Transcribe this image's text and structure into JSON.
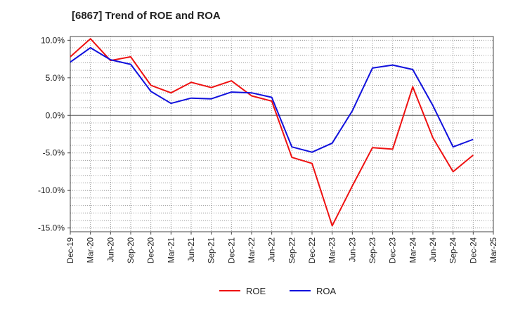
{
  "chart_data": {
    "type": "line",
    "title": "[6867]  Trend of ROE and ROA",
    "xlabel": "",
    "ylabel": "",
    "categories": [
      "Dec-19",
      "Mar-20",
      "Jun-20",
      "Sep-20",
      "Dec-20",
      "Mar-21",
      "Jun-21",
      "Sep-21",
      "Dec-21",
      "Mar-22",
      "Jun-22",
      "Sep-22",
      "Dec-22",
      "Mar-23",
      "Jun-23",
      "Sep-23",
      "Dec-23",
      "Mar-24",
      "Jun-24",
      "Sep-24",
      "Dec-24",
      "Mar-25"
    ],
    "ylim": [
      -15.5,
      10.5
    ],
    "yticks": [
      10,
      5,
      0,
      -5,
      -10,
      -15
    ],
    "ytick_labels": [
      "10.0%",
      "5.0%",
      "0.0%",
      "-5.0%",
      "-10.0%",
      "-15.0%"
    ],
    "grid": true,
    "legend_position": "bottom",
    "series": [
      {
        "name": "ROE",
        "color": "#ee1111",
        "values": [
          7.8,
          10.2,
          7.3,
          7.8,
          4.0,
          3.0,
          4.4,
          3.7,
          4.6,
          2.6,
          1.9,
          -5.6,
          -6.4,
          -14.7,
          -9.4,
          -4.3,
          -4.5,
          3.8,
          -3.0,
          -7.5,
          -5.3,
          null
        ]
      },
      {
        "name": "ROA",
        "color": "#1111dd",
        "values": [
          7.1,
          9.0,
          7.4,
          6.8,
          3.2,
          1.6,
          2.3,
          2.2,
          3.1,
          3.0,
          2.4,
          -4.2,
          -4.9,
          -3.7,
          0.6,
          6.3,
          6.7,
          6.1,
          1.3,
          -4.2,
          -3.2,
          null
        ]
      }
    ]
  }
}
